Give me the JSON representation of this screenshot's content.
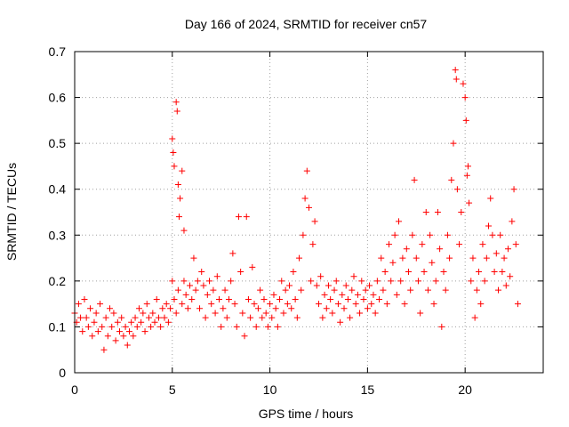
{
  "chart_data": {
    "type": "scatter",
    "title": "Day 166 of 2024, SRMTID for receiver cn57",
    "xlabel": "GPS time / hours",
    "ylabel": "SRMTID / TECUs",
    "xlim": [
      0,
      24
    ],
    "ylim": [
      0,
      0.7
    ],
    "xticks": [
      0,
      5,
      10,
      15,
      20
    ],
    "yticks": [
      0,
      0.1,
      0.2,
      0.3,
      0.4,
      0.5,
      0.6,
      0.7
    ],
    "xtick_labels": [
      "0",
      "5",
      "10",
      "15",
      "20"
    ],
    "ytick_labels": [
      "0",
      "0.1",
      "0.2",
      "0.3",
      "0.4",
      "0.5",
      "0.6",
      "0.7"
    ],
    "grid": true,
    "marker": "+",
    "series": [
      {
        "name": "SRMTID",
        "color": "#ff0000",
        "points": [
          [
            0.0,
            0.13
          ],
          [
            0.1,
            0.11
          ],
          [
            0.2,
            0.15
          ],
          [
            0.3,
            0.12
          ],
          [
            0.4,
            0.09
          ],
          [
            0.5,
            0.16
          ],
          [
            0.6,
            0.12
          ],
          [
            0.7,
            0.1
          ],
          [
            0.8,
            0.14
          ],
          [
            0.9,
            0.08
          ],
          [
            1.0,
            0.11
          ],
          [
            1.1,
            0.13
          ],
          [
            1.2,
            0.09
          ],
          [
            1.3,
            0.15
          ],
          [
            1.4,
            0.1
          ],
          [
            1.5,
            0.05
          ],
          [
            1.6,
            0.12
          ],
          [
            1.7,
            0.08
          ],
          [
            1.8,
            0.14
          ],
          [
            1.9,
            0.1
          ],
          [
            2.0,
            0.13
          ],
          [
            2.1,
            0.07
          ],
          [
            2.2,
            0.11
          ],
          [
            2.3,
            0.09
          ],
          [
            2.4,
            0.12
          ],
          [
            2.5,
            0.08
          ],
          [
            2.6,
            0.1
          ],
          [
            2.7,
            0.06
          ],
          [
            2.8,
            0.09
          ],
          [
            2.9,
            0.11
          ],
          [
            3.0,
            0.08
          ],
          [
            3.1,
            0.12
          ],
          [
            3.2,
            0.1
          ],
          [
            3.3,
            0.14
          ],
          [
            3.4,
            0.11
          ],
          [
            3.5,
            0.13
          ],
          [
            3.6,
            0.09
          ],
          [
            3.7,
            0.15
          ],
          [
            3.8,
            0.12
          ],
          [
            3.9,
            0.1
          ],
          [
            4.0,
            0.13
          ],
          [
            4.1,
            0.11
          ],
          [
            4.2,
            0.16
          ],
          [
            4.3,
            0.12
          ],
          [
            4.4,
            0.1
          ],
          [
            4.5,
            0.14
          ],
          [
            4.6,
            0.12
          ],
          [
            4.7,
            0.15
          ],
          [
            4.8,
            0.11
          ],
          [
            4.9,
            0.14
          ],
          [
            5.0,
            0.51
          ],
          [
            5.05,
            0.48
          ],
          [
            5.1,
            0.45
          ],
          [
            5.2,
            0.59
          ],
          [
            5.25,
            0.57
          ],
          [
            5.3,
            0.41
          ],
          [
            5.35,
            0.34
          ],
          [
            5.4,
            0.38
          ],
          [
            5.5,
            0.44
          ],
          [
            5.6,
            0.31
          ],
          [
            5.0,
            0.2
          ],
          [
            5.1,
            0.16
          ],
          [
            5.2,
            0.13
          ],
          [
            5.3,
            0.18
          ],
          [
            5.5,
            0.15
          ],
          [
            5.6,
            0.2
          ],
          [
            5.7,
            0.17
          ],
          [
            5.8,
            0.14
          ],
          [
            5.9,
            0.19
          ],
          [
            6.0,
            0.16
          ],
          [
            6.1,
            0.25
          ],
          [
            6.2,
            0.18
          ],
          [
            6.3,
            0.2
          ],
          [
            6.4,
            0.14
          ],
          [
            6.5,
            0.22
          ],
          [
            6.6,
            0.19
          ],
          [
            6.7,
            0.12
          ],
          [
            6.8,
            0.17
          ],
          [
            6.9,
            0.2
          ],
          [
            7.0,
            0.15
          ],
          [
            7.1,
            0.18
          ],
          [
            7.2,
            0.13
          ],
          [
            7.3,
            0.21
          ],
          [
            7.4,
            0.16
          ],
          [
            7.5,
            0.1
          ],
          [
            7.6,
            0.14
          ],
          [
            7.7,
            0.18
          ],
          [
            7.8,
            0.12
          ],
          [
            7.9,
            0.16
          ],
          [
            8.0,
            0.2
          ],
          [
            8.1,
            0.26
          ],
          [
            8.2,
            0.15
          ],
          [
            8.3,
            0.1
          ],
          [
            8.4,
            0.34
          ],
          [
            8.5,
            0.22
          ],
          [
            8.6,
            0.13
          ],
          [
            8.7,
            0.08
          ],
          [
            8.8,
            0.34
          ],
          [
            8.9,
            0.16
          ],
          [
            9.0,
            0.12
          ],
          [
            9.1,
            0.23
          ],
          [
            9.2,
            0.15
          ],
          [
            9.3,
            0.1
          ],
          [
            9.4,
            0.14
          ],
          [
            9.5,
            0.18
          ],
          [
            9.6,
            0.12
          ],
          [
            9.7,
            0.16
          ],
          [
            9.8,
            0.13
          ],
          [
            9.9,
            0.1
          ],
          [
            10.0,
            0.15
          ],
          [
            10.1,
            0.12
          ],
          [
            10.2,
            0.17
          ],
          [
            10.3,
            0.14
          ],
          [
            10.4,
            0.1
          ],
          [
            10.5,
            0.16
          ],
          [
            10.6,
            0.2
          ],
          [
            10.7,
            0.13
          ],
          [
            10.8,
            0.18
          ],
          [
            10.9,
            0.15
          ],
          [
            11.0,
            0.19
          ],
          [
            11.1,
            0.14
          ],
          [
            11.2,
            0.22
          ],
          [
            11.3,
            0.16
          ],
          [
            11.4,
            0.12
          ],
          [
            11.5,
            0.25
          ],
          [
            11.6,
            0.18
          ],
          [
            11.7,
            0.3
          ],
          [
            11.8,
            0.38
          ],
          [
            11.9,
            0.44
          ],
          [
            12.0,
            0.36
          ],
          [
            12.1,
            0.2
          ],
          [
            12.2,
            0.28
          ],
          [
            12.3,
            0.33
          ],
          [
            12.4,
            0.19
          ],
          [
            12.5,
            0.15
          ],
          [
            12.6,
            0.21
          ],
          [
            12.7,
            0.12
          ],
          [
            12.8,
            0.17
          ],
          [
            12.9,
            0.14
          ],
          [
            13.0,
            0.19
          ],
          [
            13.1,
            0.16
          ],
          [
            13.2,
            0.13
          ],
          [
            13.3,
            0.18
          ],
          [
            13.4,
            0.2
          ],
          [
            13.5,
            0.15
          ],
          [
            13.6,
            0.11
          ],
          [
            13.7,
            0.17
          ],
          [
            13.8,
            0.14
          ],
          [
            13.9,
            0.19
          ],
          [
            14.0,
            0.16
          ],
          [
            14.1,
            0.12
          ],
          [
            14.2,
            0.18
          ],
          [
            14.3,
            0.21
          ],
          [
            14.4,
            0.15
          ],
          [
            14.5,
            0.17
          ],
          [
            14.6,
            0.13
          ],
          [
            14.7,
            0.2
          ],
          [
            14.8,
            0.16
          ],
          [
            14.9,
            0.18
          ],
          [
            15.0,
            0.14
          ],
          [
            15.1,
            0.19
          ],
          [
            15.2,
            0.15
          ],
          [
            15.3,
            0.17
          ],
          [
            15.4,
            0.13
          ],
          [
            15.5,
            0.2
          ],
          [
            15.6,
            0.16
          ],
          [
            15.7,
            0.25
          ],
          [
            15.8,
            0.18
          ],
          [
            15.9,
            0.22
          ],
          [
            16.0,
            0.15
          ],
          [
            16.1,
            0.28
          ],
          [
            16.2,
            0.2
          ],
          [
            16.3,
            0.24
          ],
          [
            16.4,
            0.3
          ],
          [
            16.5,
            0.17
          ],
          [
            16.6,
            0.33
          ],
          [
            16.7,
            0.2
          ],
          [
            16.8,
            0.25
          ],
          [
            16.9,
            0.15
          ],
          [
            17.0,
            0.27
          ],
          [
            17.1,
            0.22
          ],
          [
            17.2,
            0.18
          ],
          [
            17.3,
            0.3
          ],
          [
            17.4,
            0.42
          ],
          [
            17.5,
            0.25
          ],
          [
            17.6,
            0.2
          ],
          [
            17.7,
            0.13
          ],
          [
            17.8,
            0.28
          ],
          [
            17.9,
            0.22
          ],
          [
            18.0,
            0.35
          ],
          [
            18.1,
            0.18
          ],
          [
            18.2,
            0.3
          ],
          [
            18.3,
            0.24
          ],
          [
            18.4,
            0.15
          ],
          [
            18.5,
            0.2
          ],
          [
            18.6,
            0.35
          ],
          [
            18.7,
            0.27
          ],
          [
            18.8,
            0.1
          ],
          [
            18.9,
            0.22
          ],
          [
            19.0,
            0.18
          ],
          [
            19.1,
            0.3
          ],
          [
            19.2,
            0.25
          ],
          [
            19.3,
            0.42
          ],
          [
            19.4,
            0.5
          ],
          [
            19.5,
            0.66
          ],
          [
            19.55,
            0.64
          ],
          [
            19.6,
            0.4
          ],
          [
            19.7,
            0.28
          ],
          [
            19.8,
            0.35
          ],
          [
            19.9,
            0.63
          ],
          [
            20.0,
            0.6
          ],
          [
            20.05,
            0.55
          ],
          [
            20.1,
            0.43
          ],
          [
            20.15,
            0.45
          ],
          [
            20.2,
            0.37
          ],
          [
            20.3,
            0.2
          ],
          [
            20.4,
            0.25
          ],
          [
            20.5,
            0.12
          ],
          [
            20.6,
            0.18
          ],
          [
            20.7,
            0.22
          ],
          [
            20.8,
            0.15
          ],
          [
            20.9,
            0.28
          ],
          [
            21.0,
            0.2
          ],
          [
            21.1,
            0.25
          ],
          [
            21.2,
            0.32
          ],
          [
            21.3,
            0.38
          ],
          [
            21.4,
            0.3
          ],
          [
            21.5,
            0.22
          ],
          [
            21.6,
            0.26
          ],
          [
            21.7,
            0.18
          ],
          [
            21.8,
            0.3
          ],
          [
            21.9,
            0.22
          ],
          [
            22.0,
            0.25
          ],
          [
            22.1,
            0.19
          ],
          [
            22.2,
            0.27
          ],
          [
            22.3,
            0.21
          ],
          [
            22.4,
            0.33
          ],
          [
            22.5,
            0.4
          ],
          [
            22.6,
            0.28
          ],
          [
            22.7,
            0.15
          ]
        ]
      }
    ]
  }
}
